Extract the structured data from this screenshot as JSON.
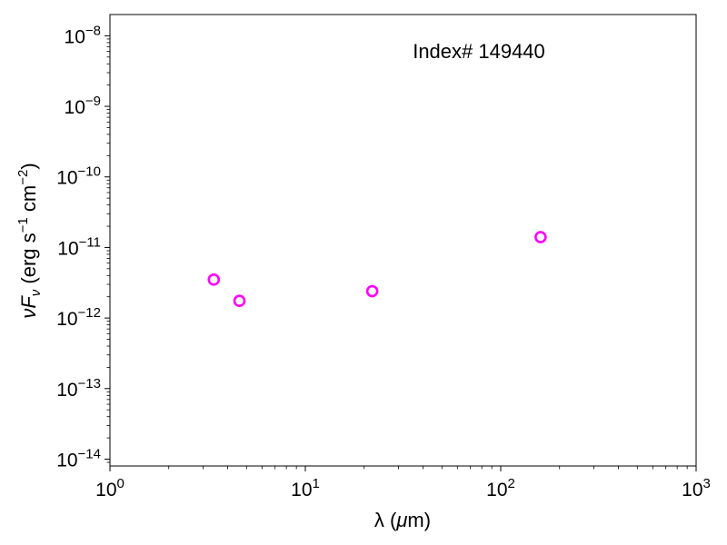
{
  "chart_data": {
    "type": "scatter",
    "annotation": "Index# 149440",
    "xlabel": {
      "pre": "λ (",
      "italic": "μ",
      "post": "m)"
    },
    "ylabel": {
      "var": "νF",
      "sub": "ν",
      "units_pre": " (erg s",
      "exp1": "−1",
      "mid": " cm",
      "exp2": "−2",
      "post": ")"
    },
    "x_scale": "log",
    "y_scale": "log",
    "xlim": [
      1,
      1000
    ],
    "ylim": [
      8e-15,
      2e-08
    ],
    "x_ticks": [
      {
        "value": 1,
        "base": "10",
        "exp": "0"
      },
      {
        "value": 10,
        "base": "10",
        "exp": "1"
      },
      {
        "value": 100,
        "base": "10",
        "exp": "2"
      },
      {
        "value": 1000,
        "base": "10",
        "exp": "3"
      }
    ],
    "y_ticks": [
      {
        "value": 1e-14,
        "base": "10",
        "exp": "−14"
      },
      {
        "value": 1e-13,
        "base": "10",
        "exp": "−13"
      },
      {
        "value": 1e-12,
        "base": "10",
        "exp": "−12"
      },
      {
        "value": 1e-11,
        "base": "10",
        "exp": "−11"
      },
      {
        "value": 1e-10,
        "base": "10",
        "exp": "−10"
      },
      {
        "value": 1e-09,
        "base": "10",
        "exp": "−9"
      },
      {
        "value": 1e-08,
        "base": "10",
        "exp": "−8"
      }
    ],
    "marker_color": "#ff00ff",
    "marker_style": "open-circle",
    "grid": false,
    "points": [
      {
        "x": 3.4,
        "y": 3.5e-12
      },
      {
        "x": 4.6,
        "y": 1.75e-12
      },
      {
        "x": 22,
        "y": 2.4e-12
      },
      {
        "x": 160,
        "y": 1.4e-11
      }
    ]
  }
}
